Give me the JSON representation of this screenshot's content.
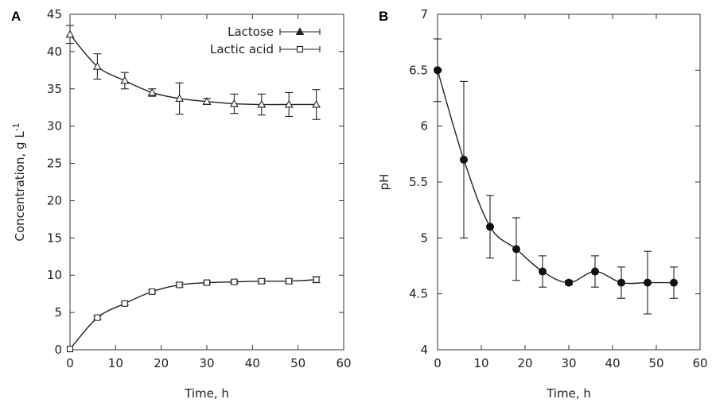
{
  "chart_data": [
    {
      "type": "line",
      "panel": "A",
      "xlabel": "Time, h",
      "ylabel": "Concentration, g L",
      "ylabel_sup": "-1",
      "xlim": [
        0,
        60
      ],
      "ylim": [
        0,
        45
      ],
      "xticks": [
        "0",
        "10",
        "20",
        "30",
        "40",
        "50",
        "60"
      ],
      "yticks": [
        "0",
        "5",
        "10",
        "15",
        "20",
        "25",
        "30",
        "35",
        "40",
        "45"
      ],
      "grid": false,
      "legend_position": "top-right",
      "x": [
        0,
        6,
        12,
        18,
        24,
        30,
        36,
        42,
        48,
        54
      ],
      "series": [
        {
          "name": "Lactose",
          "marker": "triangle",
          "values": [
            42.3,
            38.0,
            36.1,
            34.5,
            33.7,
            33.3,
            33.0,
            32.9,
            32.9,
            32.9
          ],
          "errors": [
            1.2,
            1.7,
            1.1,
            0.5,
            2.1,
            0.4,
            1.3,
            1.4,
            1.6,
            2.0
          ]
        },
        {
          "name": "Lactic acid",
          "marker": "square",
          "values": [
            0.1,
            4.3,
            6.2,
            7.8,
            8.7,
            9.0,
            9.1,
            9.2,
            9.2,
            9.4
          ],
          "errors": [
            0.0,
            0.2,
            0.2,
            0.2,
            0.3,
            0.2,
            0.2,
            0.3,
            0.3,
            0.4
          ]
        }
      ]
    },
    {
      "type": "line",
      "panel": "B",
      "xlabel": "Time, h",
      "ylabel": "pH",
      "xlim": [
        0,
        60
      ],
      "ylim": [
        4,
        7
      ],
      "xticks": [
        "0",
        "10",
        "20",
        "30",
        "40",
        "50",
        "60"
      ],
      "yticks": [
        "4",
        "4.5",
        "5",
        "5.5",
        "6",
        "6.5",
        "7"
      ],
      "grid": false,
      "x": [
        0,
        6,
        12,
        18,
        24,
        30,
        36,
        42,
        48,
        54
      ],
      "series": [
        {
          "marker": "filled-circle",
          "values": [
            6.5,
            5.7,
            5.1,
            4.9,
            4.7,
            4.6,
            4.7,
            4.6,
            4.6,
            4.6
          ],
          "errors": [
            0.28,
            0.7,
            0.28,
            0.28,
            0.14,
            0.02,
            0.14,
            0.14,
            0.28,
            0.14
          ]
        }
      ]
    }
  ]
}
